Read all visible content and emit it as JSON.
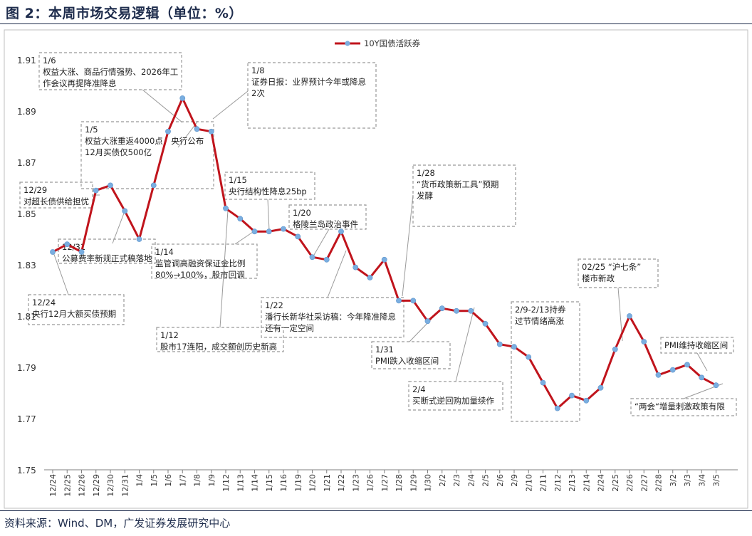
{
  "title": "图 2：本周市场交易逻辑（单位：%）",
  "source": "资料来源：Wind、DM，广发证券发展研究中心",
  "colors": {
    "line": "#c0141c",
    "marker": "#7aaee0",
    "box_border": "#999999",
    "heading": "#1f2d4d"
  },
  "chart_data": {
    "type": "line",
    "title": "",
    "xlabel": "",
    "ylabel": "",
    "ylim": [
      1.75,
      1.91
    ],
    "yticks": [
      "1.75",
      "1.77",
      "1.79",
      "1.81",
      "1.83",
      "1.85",
      "1.87",
      "1.89",
      "1.91"
    ],
    "grid": false,
    "legend_position": "top-center",
    "categories": [
      "12/24",
      "12/25",
      "12/26",
      "12/29",
      "12/30",
      "12/31",
      "1/4",
      "1/5",
      "1/6",
      "1/7",
      "1/8",
      "1/9",
      "1/12",
      "1/13",
      "1/14",
      "1/15",
      "1/16",
      "1/19",
      "1/20",
      "1/21",
      "1/22",
      "1/23",
      "1/26",
      "1/27",
      "1/28",
      "1/29",
      "1/30",
      "2/2",
      "2/3",
      "2/4",
      "2/5",
      "2/6",
      "2/9",
      "2/10",
      "2/11",
      "2/12",
      "2/13",
      "2/14",
      "2/24",
      "2/25",
      "2/26",
      "2/27",
      "2/28",
      "3/2",
      "3/3",
      "3/4",
      "3/5"
    ],
    "series": [
      {
        "name": "10Y国债活跃券",
        "values": [
          1.835,
          1.838,
          1.835,
          1.859,
          1.861,
          1.851,
          1.84,
          1.861,
          1.882,
          1.895,
          1.883,
          1.882,
          1.852,
          1.848,
          1.843,
          1.843,
          1.844,
          1.841,
          1.833,
          1.832,
          1.843,
          1.829,
          1.825,
          1.832,
          1.816,
          1.816,
          1.808,
          1.813,
          1.812,
          1.812,
          1.807,
          1.799,
          1.798,
          1.794,
          1.784,
          1.774,
          1.779,
          1.777,
          1.782,
          1.797,
          1.81,
          1.8,
          1.787,
          1.789,
          1.791,
          1.786,
          1.783
        ]
      }
    ],
    "annotations": [
      {
        "lines": [
          "1/6",
          "权益大涨、商品行情强势、2026年工",
          "作会议再提降准降息"
        ]
      },
      {
        "lines": [
          "1/8",
          "证券日报：业界预计今年或降息",
          "2次"
        ]
      },
      {
        "lines": [
          "1/5",
          "权益大涨重返4000点，央行公布",
          "12月买债仅500亿"
        ]
      },
      {
        "lines": [
          "12/29",
          "对超长债供给担忧"
        ]
      },
      {
        "lines": [
          "1/15",
          "央行结构性降息25bp"
        ]
      },
      {
        "lines": [
          "1/28",
          "“货币政策新工具”预期",
          "发酵"
        ]
      },
      {
        "lines": [
          "1/20",
          "格陵兰岛政治事件"
        ]
      },
      {
        "lines": [
          "12/31",
          "公募费率新规正式稿落地"
        ]
      },
      {
        "lines": [
          "1/14",
          "监管调高融资保证金比例",
          "80%→100%，股市回调"
        ]
      },
      {
        "lines": [
          "12/24",
          "央行12月大额买债预期"
        ]
      },
      {
        "lines": [
          "1/22",
          "潘行长新华社采访稿：今年降准降息",
          "还有一定空间"
        ]
      },
      {
        "lines": [
          "1/12",
          "股市17连阳，成交额创历史新高"
        ]
      },
      {
        "lines": [
          "1/31",
          "PMI跌入收缩区间"
        ]
      },
      {
        "lines": [
          "2/4",
          "买断式逆回购加量续作"
        ]
      },
      {
        "lines": [
          "2/9-2/13持券",
          "过节情绪高涨"
        ]
      },
      {
        "lines": [
          "02/25 “沪七条”",
          "楼市新政"
        ]
      },
      {
        "lines": [
          "PMI维持收缩区间"
        ]
      },
      {
        "lines": [
          "“两会“增量刺激政策有限"
        ]
      }
    ]
  }
}
